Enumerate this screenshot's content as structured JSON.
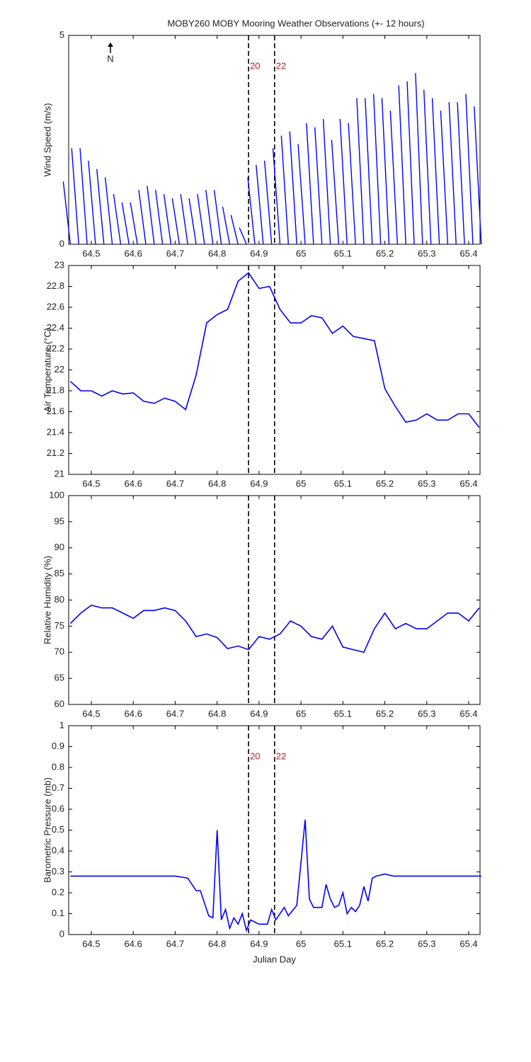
{
  "chart_data": [
    {
      "type": "stick",
      "title": "MOBY260 MOBY Mooring Weather Observations (+- 12 hours)",
      "ylabel": "Wind Speed (m/s)",
      "annotation": "N",
      "color": "#0000ff",
      "x": [
        64.45,
        64.47,
        64.49,
        64.51,
        64.53,
        64.55,
        64.57,
        64.59,
        64.61,
        64.63,
        64.65,
        64.67,
        64.69,
        64.71,
        64.73,
        64.75,
        64.77,
        64.79,
        64.81,
        64.83,
        64.85,
        64.87,
        64.89,
        64.91,
        64.93,
        64.95,
        64.97,
        64.99,
        65.01,
        65.03,
        65.05,
        65.07,
        65.09,
        65.11,
        65.13,
        65.15,
        65.17,
        65.19,
        65.21,
        65.23,
        65.25,
        65.27,
        65.29,
        65.31,
        65.33,
        65.35,
        65.37,
        65.39,
        65.41,
        65.43
      ],
      "values": [
        1.5,
        2.3,
        2.3,
        2.0,
        1.8,
        1.6,
        1.2,
        1.0,
        1.0,
        1.3,
        1.4,
        1.3,
        1.2,
        1.1,
        1.2,
        1.1,
        1.2,
        1.3,
        1.3,
        0.9,
        0.7,
        0.4,
        1.6,
        1.9,
        2.0,
        2.3,
        2.6,
        2.7,
        2.4,
        2.9,
        2.8,
        3.0,
        2.5,
        3.0,
        2.9,
        3.5,
        3.5,
        3.6,
        3.5,
        3.2,
        3.8,
        3.9,
        4.1,
        3.7,
        3.5,
        3.2,
        3.4,
        3.4,
        3.6,
        3.3
      ],
      "xlim": [
        64.446,
        65.427
      ],
      "xticks": [
        64.5,
        64.6,
        64.7,
        64.8,
        64.9,
        65,
        65.1,
        65.2,
        65.3,
        65.4
      ],
      "ylim": [
        0,
        5
      ],
      "yticks": [
        0,
        5
      ],
      "vlines": [
        64.875,
        64.937
      ],
      "vline_labels": [
        "20",
        "22"
      ]
    },
    {
      "type": "line",
      "ylabel": "Air Temperature (°C)",
      "color": "#0000ff",
      "x": [
        64.45,
        64.475,
        64.5,
        64.525,
        64.55,
        64.575,
        64.6,
        64.625,
        64.65,
        64.675,
        64.7,
        64.725,
        64.75,
        64.775,
        64.8,
        64.825,
        64.85,
        64.875,
        64.9,
        64.925,
        64.95,
        64.975,
        65,
        65.025,
        65.05,
        65.075,
        65.1,
        65.125,
        65.15,
        65.175,
        65.2,
        65.225,
        65.25,
        65.275,
        65.3,
        65.325,
        65.35,
        65.375,
        65.4,
        65.425
      ],
      "values": [
        21.89,
        21.8,
        21.8,
        21.75,
        21.8,
        21.77,
        21.78,
        21.7,
        21.68,
        21.73,
        21.7,
        21.62,
        21.95,
        22.45,
        22.53,
        22.58,
        22.85,
        22.93,
        22.78,
        22.8,
        22.58,
        22.45,
        22.45,
        22.52,
        22.5,
        22.35,
        22.42,
        22.32,
        22.3,
        22.28,
        21.82,
        21.65,
        21.5,
        21.52,
        21.58,
        21.52,
        21.52,
        21.58,
        21.58,
        21.45
      ],
      "xlim": [
        64.446,
        65.427
      ],
      "xticks": [
        64.5,
        64.6,
        64.7,
        64.8,
        64.9,
        65,
        65.1,
        65.2,
        65.3,
        65.4
      ],
      "ylim": [
        21,
        23
      ],
      "yticks": [
        21,
        21.2,
        21.4,
        21.6,
        21.8,
        22,
        22.2,
        22.4,
        22.6,
        22.8,
        23
      ],
      "vlines": [
        64.875,
        64.937
      ]
    },
    {
      "type": "line",
      "ylabel": "Relative Humidity (%)",
      "color": "#0000ff",
      "x": [
        64.45,
        64.475,
        64.5,
        64.525,
        64.55,
        64.575,
        64.6,
        64.625,
        64.65,
        64.675,
        64.7,
        64.725,
        64.75,
        64.775,
        64.8,
        64.825,
        64.85,
        64.875,
        64.9,
        64.925,
        64.95,
        64.975,
        65,
        65.025,
        65.05,
        65.075,
        65.1,
        65.125,
        65.15,
        65.175,
        65.2,
        65.225,
        65.25,
        65.275,
        65.3,
        65.325,
        65.35,
        65.375,
        65.4,
        65.425
      ],
      "values": [
        75.5,
        77.5,
        79,
        78.5,
        78.5,
        77.5,
        76.5,
        78,
        78,
        78.5,
        78,
        76,
        73,
        73.5,
        72.8,
        70.7,
        71.2,
        70.5,
        73,
        72.5,
        73.5,
        76,
        75,
        73,
        72.5,
        75,
        71,
        70.5,
        70,
        74.5,
        77.5,
        74.5,
        75.5,
        74.5,
        74.5,
        76,
        77.5,
        77.5,
        76,
        78.5
      ],
      "xlim": [
        64.446,
        65.427
      ],
      "xticks": [
        64.5,
        64.6,
        64.7,
        64.8,
        64.9,
        65,
        65.1,
        65.2,
        65.3,
        65.4
      ],
      "ylim": [
        60,
        100
      ],
      "yticks": [
        60,
        65,
        70,
        75,
        80,
        85,
        90,
        95,
        100
      ],
      "vlines": [
        64.875,
        64.937
      ]
    },
    {
      "type": "line",
      "ylabel": "Barometric Pressure (mb)",
      "xlabel": "Julian Day",
      "color": "#0000ff",
      "x": [
        64.45,
        64.5,
        64.6,
        64.7,
        64.73,
        64.75,
        64.76,
        64.78,
        64.79,
        64.8,
        64.81,
        64.82,
        64.83,
        64.84,
        64.85,
        64.86,
        64.87,
        64.88,
        64.9,
        64.92,
        64.93,
        64.94,
        64.96,
        64.97,
        64.99,
        65.01,
        65.02,
        65.03,
        65.05,
        65.06,
        65.07,
        65.08,
        65.09,
        65.1,
        65.11,
        65.12,
        65.13,
        65.14,
        65.15,
        65.16,
        65.17,
        65.18,
        65.2,
        65.22,
        65.3,
        65.43
      ],
      "values": [
        0.28,
        0.28,
        0.28,
        0.28,
        0.27,
        0.21,
        0.21,
        0.09,
        0.08,
        0.5,
        0.07,
        0.12,
        0.03,
        0.08,
        0.05,
        0.1,
        0.02,
        0.07,
        0.05,
        0.05,
        0.12,
        0.07,
        0.13,
        0.09,
        0.14,
        0.55,
        0.17,
        0.13,
        0.13,
        0.24,
        0.17,
        0.13,
        0.14,
        0.2,
        0.1,
        0.13,
        0.11,
        0.14,
        0.23,
        0.16,
        0.27,
        0.28,
        0.29,
        0.28,
        0.28,
        0.28
      ],
      "xlim": [
        64.446,
        65.427
      ],
      "xticks": [
        64.5,
        64.6,
        64.7,
        64.8,
        64.9,
        65,
        65.1,
        65.2,
        65.3,
        65.4
      ],
      "ylim": [
        0,
        1
      ],
      "yticks": [
        0,
        0.1,
        0.2,
        0.3,
        0.4,
        0.5,
        0.6,
        0.7,
        0.8,
        0.9,
        1
      ],
      "vlines": [
        64.875,
        64.937
      ],
      "vline_labels": [
        "20",
        "22"
      ]
    }
  ]
}
